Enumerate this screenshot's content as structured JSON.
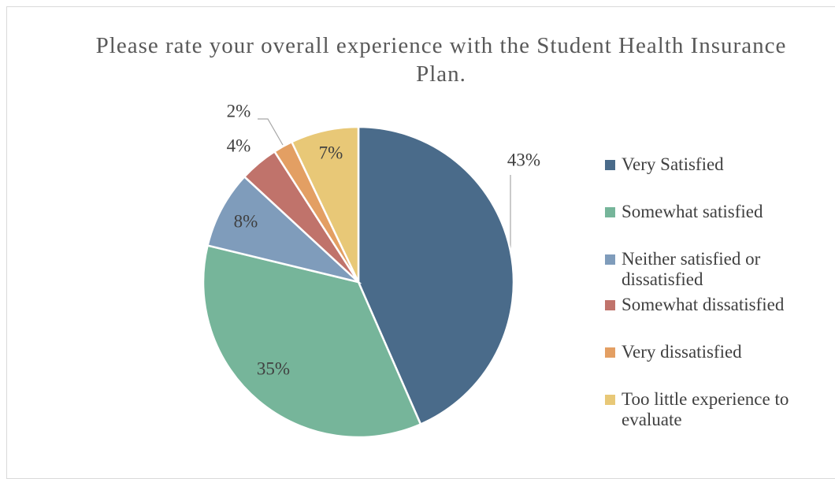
{
  "chart_data": {
    "type": "pie",
    "title": "Please rate your overall experience with the Student Health Insurance Plan.",
    "categories": [
      "Very Satisfied",
      "Somewhat satisfied",
      "Neither satisfied or dissatisfied",
      "Somewhat dissatisfied",
      "Very dissatisfied",
      "Too little experience to evaluate"
    ],
    "values": [
      43,
      35,
      8,
      4,
      2,
      7
    ],
    "value_labels": [
      "43%",
      "35%",
      "8%",
      "4%",
      "2%",
      "7%"
    ],
    "colors": [
      "#4a6b8a",
      "#76b59a",
      "#7f9cbb",
      "#c0736b",
      "#e39f63",
      "#e8c877"
    ],
    "legend": "right"
  }
}
